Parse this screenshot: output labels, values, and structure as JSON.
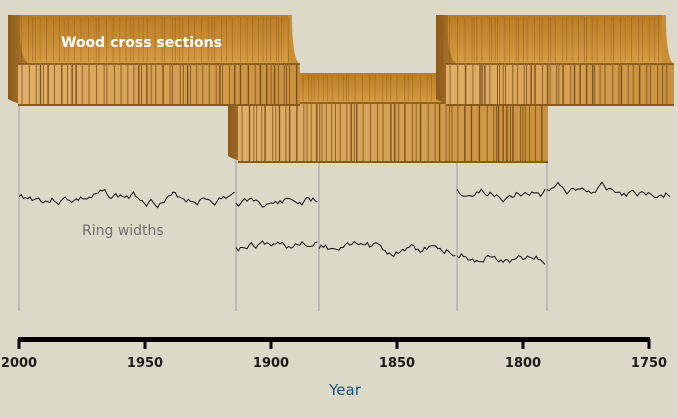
{
  "labels": {
    "wood": "Wood cross sections",
    "rings": "Ring widths"
  },
  "axis": {
    "title": "Year",
    "ticks": [
      "2000",
      "1950",
      "1900",
      "1850",
      "1800",
      "1750"
    ]
  },
  "colors": {
    "background": "#ddd9c8",
    "wood_top": "#c58a2e",
    "wood_face": "#d9a45a",
    "wood_dark": "#8a5a1c",
    "ring_line": "#111111",
    "guide": "#a8a8a8",
    "axis": "#000000",
    "axis_title": "#1f4e79"
  }
}
